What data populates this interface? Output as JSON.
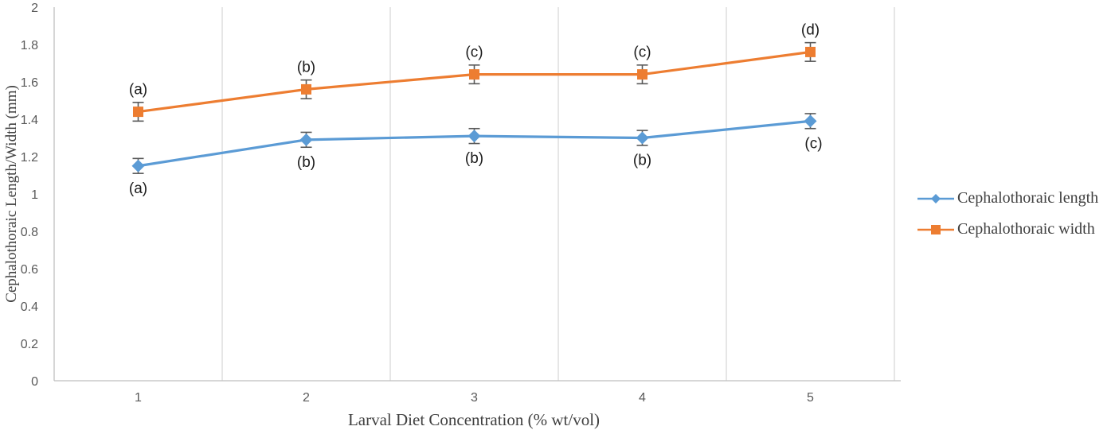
{
  "chart_data": {
    "type": "line",
    "title": "",
    "xlabel": "Larval Diet Concentration (% wt/vol)",
    "ylabel": "Cephalothoraic Length/Width (mm)",
    "categories": [
      "1",
      "2",
      "3",
      "4",
      "5"
    ],
    "ylim": [
      0,
      2
    ],
    "ytick_step": 0.2,
    "ytick_labels": [
      "0",
      "0.2",
      "0.4",
      "0.6",
      "0.8",
      "1",
      "1.2",
      "1.4",
      "1.6",
      "1.8",
      "2"
    ],
    "grid": "vertical-only",
    "legend_position": "right",
    "series": [
      {
        "name": "Cephalothoraic length",
        "color": "#5B9BD5",
        "marker": "diamond",
        "values": [
          1.15,
          1.29,
          1.31,
          1.3,
          1.39
        ],
        "error": 0.04,
        "point_labels": [
          "(a)",
          "(b)",
          "(b)",
          "(b)",
          "(c)"
        ],
        "label_position": "below"
      },
      {
        "name": "Cephalothoraic width",
        "color": "#ED7D31",
        "marker": "square",
        "values": [
          1.44,
          1.56,
          1.64,
          1.64,
          1.76
        ],
        "error": 0.05,
        "point_labels": [
          "(a)",
          "(b)",
          "(c)",
          "(c)",
          "(d)"
        ],
        "label_position": "above"
      }
    ],
    "colors": {
      "gridline": "#D9D9D9",
      "axis_line": "#BFBFBF",
      "tick_text": "#595959",
      "axis_title_text": "#404040",
      "annotation_text": "#1a1a1a",
      "error_bar": "#595959"
    }
  }
}
